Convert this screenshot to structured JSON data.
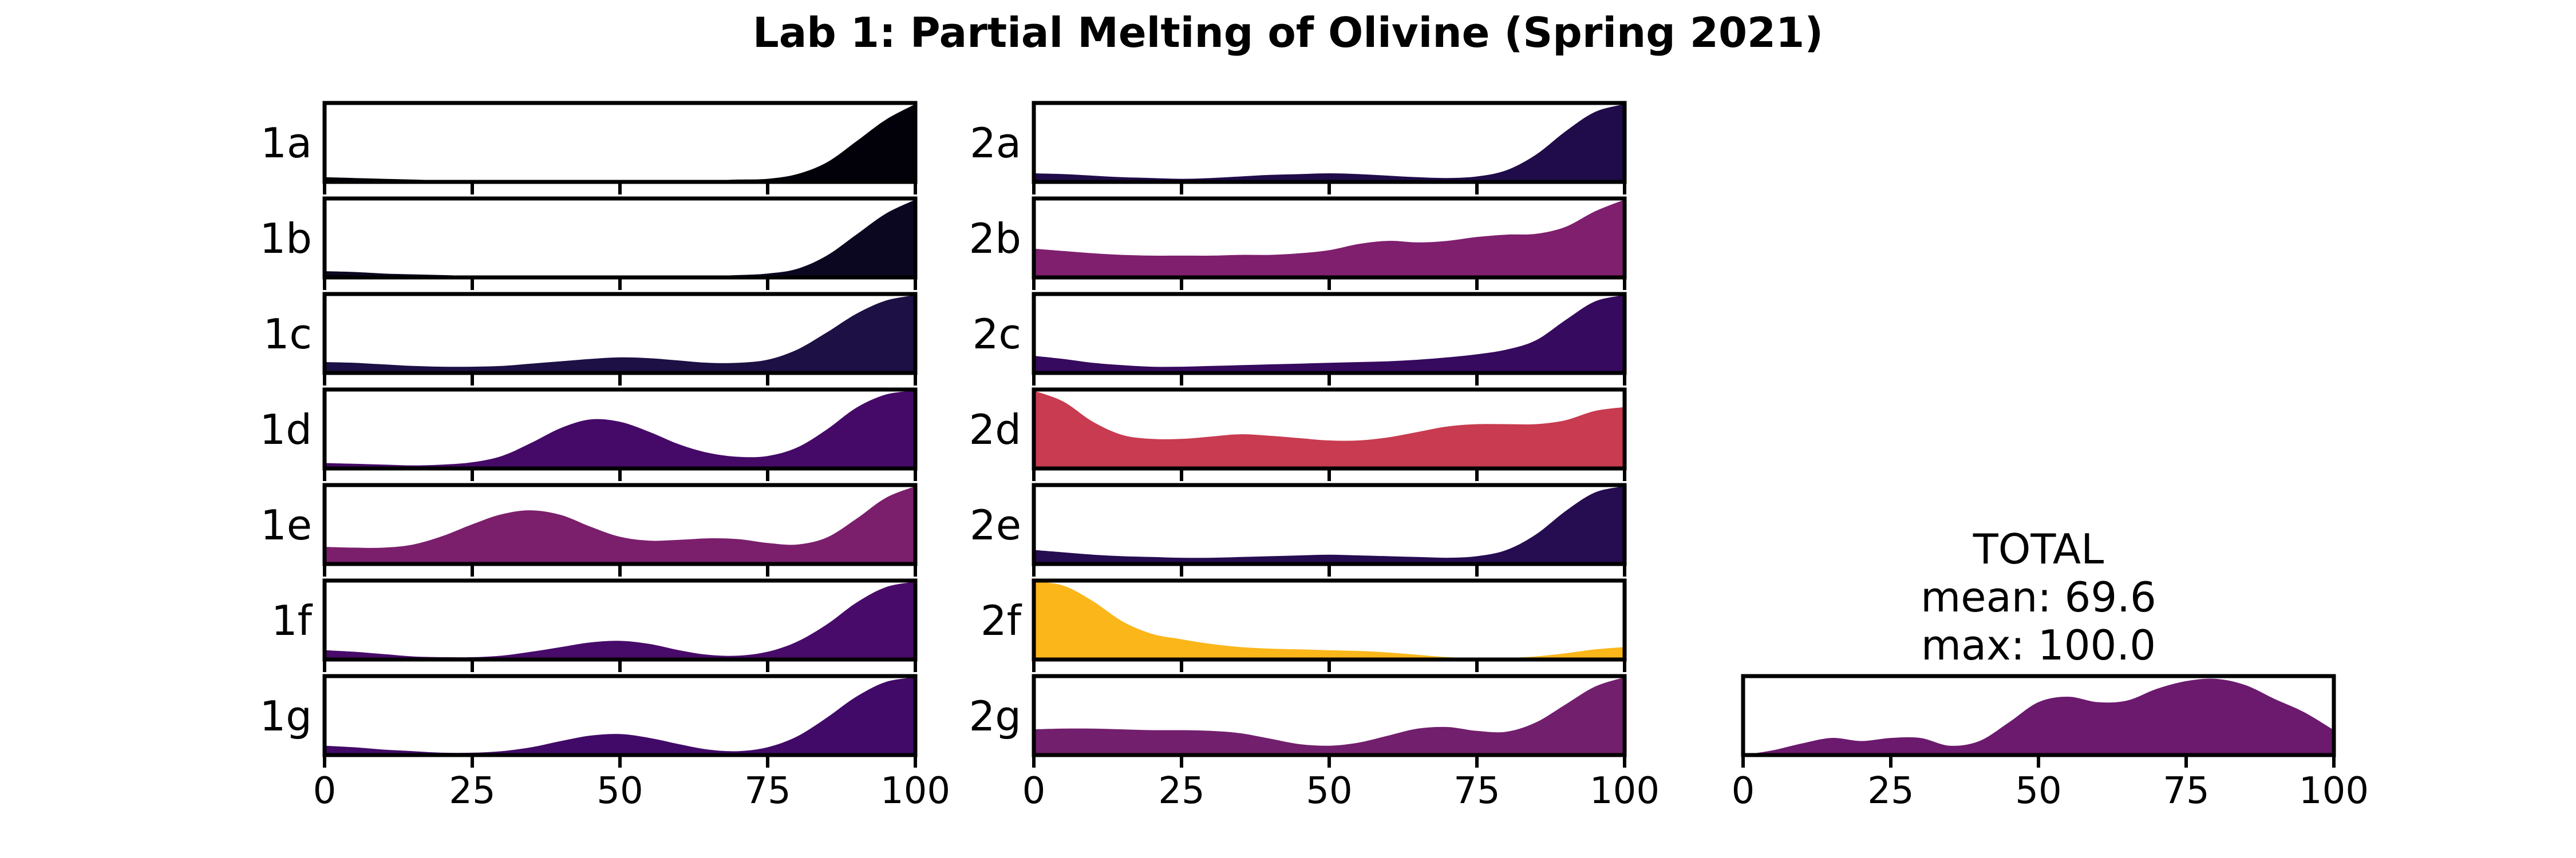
{
  "chart_data": {
    "type": "area",
    "title": "Lab 1: Partial Melting of Olivine (Spring 2021)",
    "xlim": [
      0,
      100
    ],
    "x_ticks": [
      "0",
      "25",
      "50",
      "75",
      "100"
    ],
    "x": [
      0,
      5,
      10,
      15,
      20,
      25,
      30,
      35,
      40,
      45,
      50,
      55,
      60,
      65,
      70,
      75,
      80,
      85,
      90,
      95,
      100
    ],
    "columns": [
      {
        "series": [
          {
            "name": "1a",
            "color": "#02010a",
            "values": [
              0.06,
              0.05,
              0.04,
              0.03,
              0.02,
              0.02,
              0.02,
              0.02,
              0.02,
              0.02,
              0.02,
              0.02,
              0.02,
              0.02,
              0.03,
              0.04,
              0.1,
              0.25,
              0.52,
              0.8,
              1.0
            ]
          },
          {
            "name": "1b",
            "color": "#0b0720",
            "values": [
              0.08,
              0.07,
              0.05,
              0.04,
              0.03,
              0.02,
              0.02,
              0.02,
              0.02,
              0.02,
              0.02,
              0.02,
              0.02,
              0.02,
              0.03,
              0.05,
              0.11,
              0.28,
              0.55,
              0.82,
              1.0
            ]
          },
          {
            "name": "1c",
            "color": "#1d1044",
            "values": [
              0.14,
              0.13,
              0.11,
              0.09,
              0.08,
              0.08,
              0.09,
              0.12,
              0.15,
              0.18,
              0.2,
              0.19,
              0.16,
              0.13,
              0.13,
              0.17,
              0.3,
              0.52,
              0.76,
              0.93,
              1.0
            ]
          },
          {
            "name": "1d",
            "color": "#450a68",
            "values": [
              0.07,
              0.06,
              0.05,
              0.04,
              0.05,
              0.08,
              0.16,
              0.33,
              0.52,
              0.63,
              0.6,
              0.47,
              0.31,
              0.2,
              0.15,
              0.16,
              0.27,
              0.5,
              0.78,
              0.95,
              1.0
            ]
          },
          {
            "name": "1e",
            "color": "#7b1f6c",
            "values": [
              0.22,
              0.21,
              0.21,
              0.25,
              0.36,
              0.51,
              0.64,
              0.69,
              0.63,
              0.48,
              0.35,
              0.3,
              0.31,
              0.33,
              0.32,
              0.27,
              0.25,
              0.34,
              0.58,
              0.85,
              1.0
            ]
          },
          {
            "name": "1f",
            "color": "#480b6a",
            "values": [
              0.12,
              0.1,
              0.07,
              0.04,
              0.03,
              0.03,
              0.05,
              0.1,
              0.16,
              0.22,
              0.24,
              0.2,
              0.12,
              0.06,
              0.05,
              0.1,
              0.23,
              0.45,
              0.73,
              0.93,
              1.0
            ]
          },
          {
            "name": "1g",
            "color": "#420a68",
            "values": [
              0.12,
              0.1,
              0.07,
              0.05,
              0.03,
              0.03,
              0.05,
              0.1,
              0.18,
              0.25,
              0.27,
              0.22,
              0.14,
              0.07,
              0.05,
              0.1,
              0.24,
              0.48,
              0.75,
              0.94,
              1.0
            ]
          }
        ]
      },
      {
        "series": [
          {
            "name": "2a",
            "color": "#200c4a",
            "values": [
              0.11,
              0.1,
              0.08,
              0.06,
              0.05,
              0.04,
              0.05,
              0.07,
              0.09,
              0.1,
              0.11,
              0.1,
              0.08,
              0.06,
              0.05,
              0.07,
              0.15,
              0.35,
              0.65,
              0.9,
              1.0
            ]
          },
          {
            "name": "2b",
            "color": "#7f1f6e",
            "values": [
              0.37,
              0.34,
              0.31,
              0.29,
              0.28,
              0.28,
              0.28,
              0.29,
              0.29,
              0.31,
              0.35,
              0.43,
              0.47,
              0.45,
              0.47,
              0.52,
              0.55,
              0.56,
              0.65,
              0.85,
              1.0
            ]
          },
          {
            "name": "2c",
            "color": "#360a5e",
            "values": [
              0.22,
              0.18,
              0.13,
              0.1,
              0.08,
              0.08,
              0.09,
              0.1,
              0.11,
              0.12,
              0.13,
              0.14,
              0.15,
              0.17,
              0.2,
              0.24,
              0.3,
              0.42,
              0.68,
              0.92,
              1.0
            ]
          },
          {
            "name": "2d",
            "color": "#c83b50",
            "values": [
              1.0,
              0.86,
              0.6,
              0.43,
              0.38,
              0.38,
              0.41,
              0.44,
              0.42,
              0.39,
              0.36,
              0.36,
              0.4,
              0.47,
              0.54,
              0.57,
              0.57,
              0.57,
              0.62,
              0.74,
              0.79
            ]
          },
          {
            "name": "2e",
            "color": "#260c51",
            "values": [
              0.18,
              0.15,
              0.12,
              0.1,
              0.09,
              0.08,
              0.08,
              0.09,
              0.1,
              0.11,
              0.12,
              0.11,
              0.1,
              0.09,
              0.08,
              0.1,
              0.18,
              0.38,
              0.68,
              0.92,
              1.0
            ]
          },
          {
            "name": "2f",
            "color": "#fbb61a",
            "values": [
              1.0,
              0.95,
              0.75,
              0.49,
              0.33,
              0.26,
              0.2,
              0.16,
              0.14,
              0.13,
              0.12,
              0.11,
              0.09,
              0.06,
              0.03,
              0.02,
              0.02,
              0.04,
              0.08,
              0.13,
              0.16
            ]
          },
          {
            "name": "2g",
            "color": "#721f6d",
            "values": [
              0.33,
              0.34,
              0.34,
              0.33,
              0.32,
              0.32,
              0.31,
              0.28,
              0.21,
              0.14,
              0.12,
              0.16,
              0.25,
              0.34,
              0.36,
              0.31,
              0.3,
              0.42,
              0.65,
              0.88,
              1.0
            ]
          }
        ]
      }
    ],
    "total": {
      "name": "TOTAL",
      "mean_label": "mean: 69.6",
      "max_label": "max: 100.0",
      "color": "#6b1a6e",
      "values": [
        0.0,
        0.06,
        0.15,
        0.22,
        0.18,
        0.22,
        0.22,
        0.12,
        0.18,
        0.42,
        0.68,
        0.75,
        0.68,
        0.7,
        0.85,
        0.95,
        0.98,
        0.9,
        0.72,
        0.55,
        0.32
      ]
    }
  }
}
